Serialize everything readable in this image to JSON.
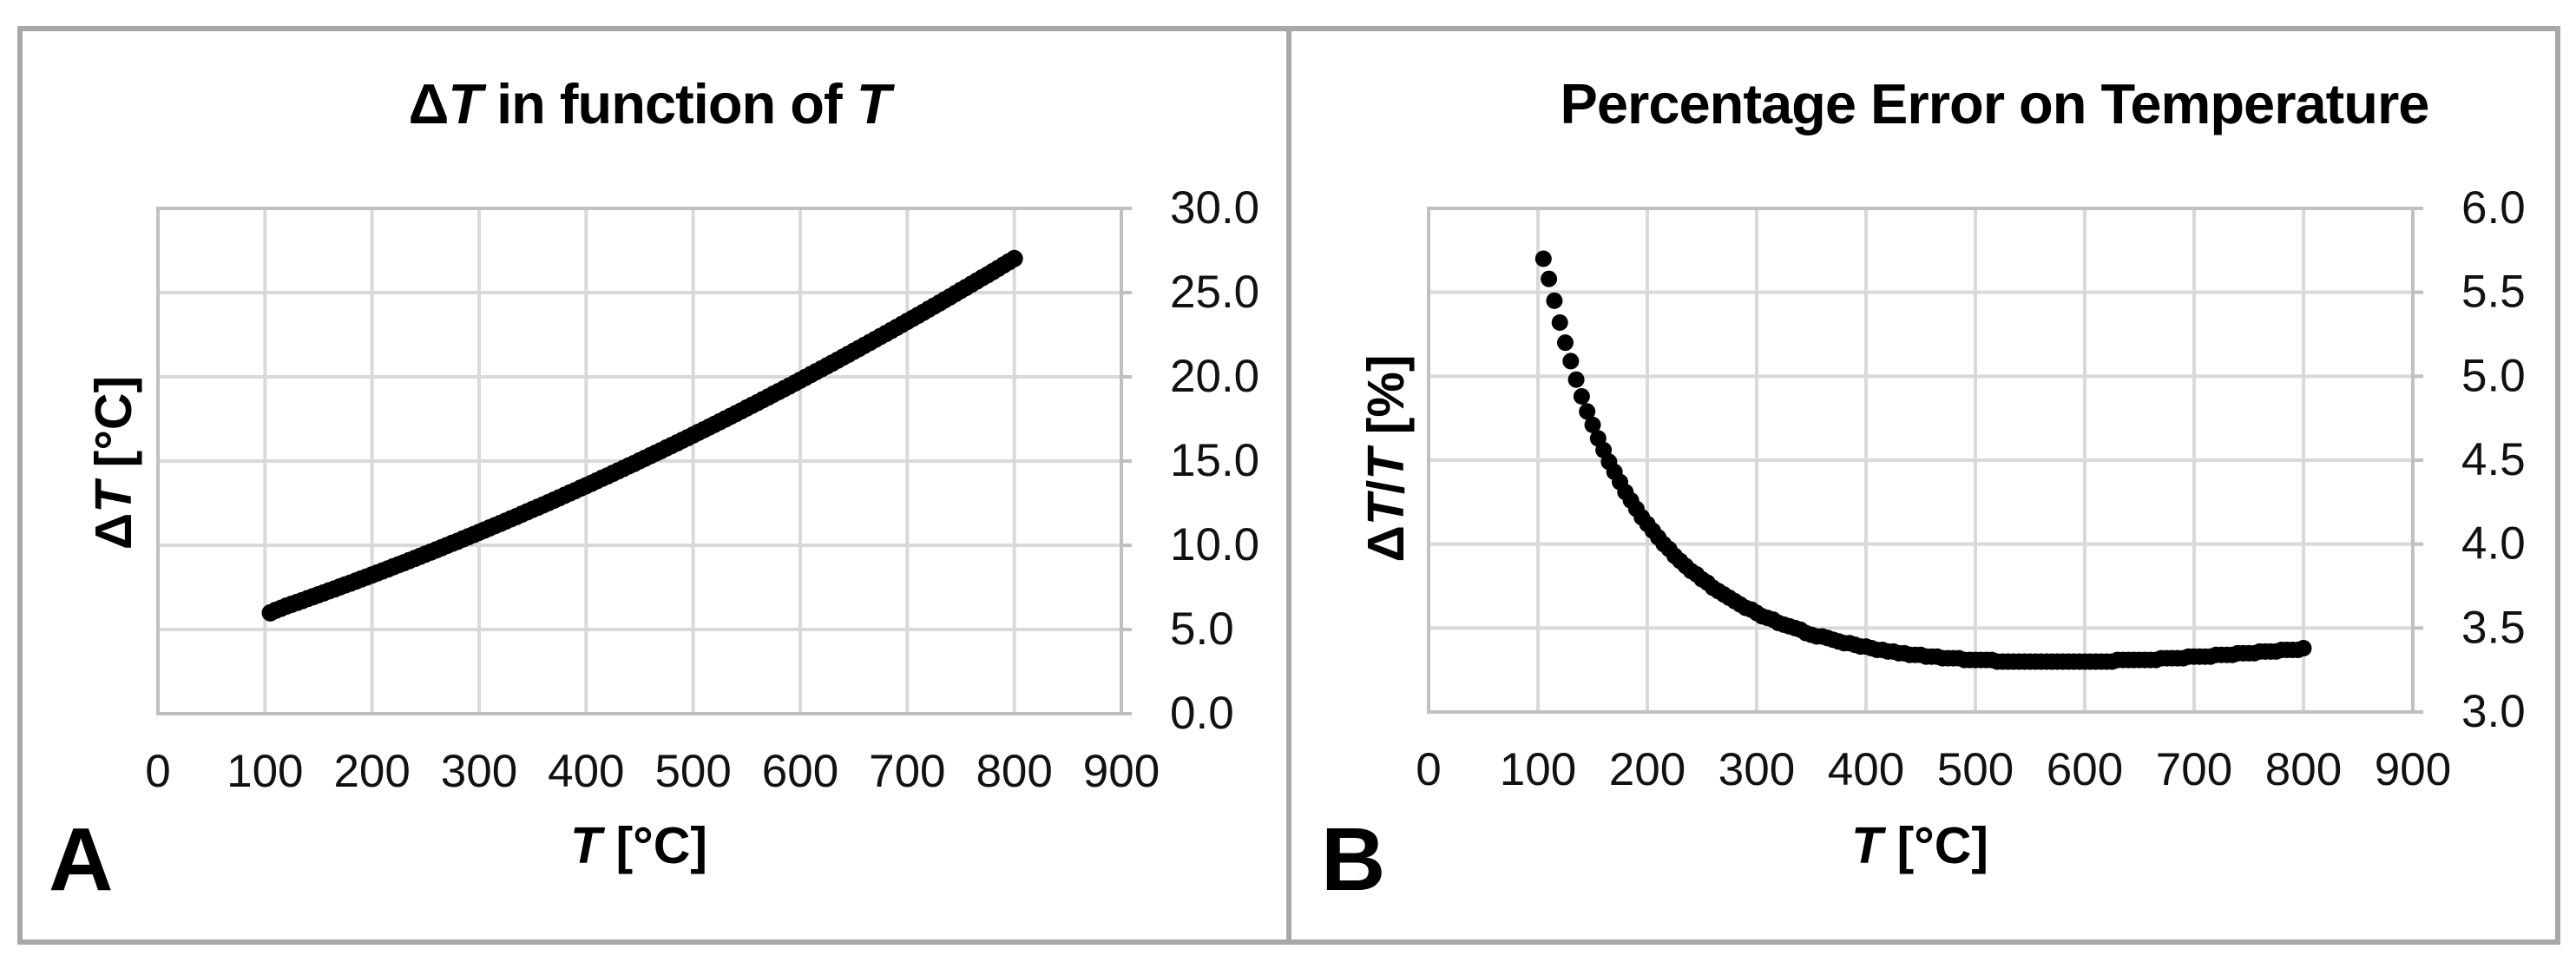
{
  "figure": {
    "frame_color": "#a8a8a8",
    "grid_color": "#d9d9d9",
    "axis_color": "#c0c0c0",
    "dot_color": "#000000",
    "text_color": "#111111"
  },
  "panels": [
    {
      "label": "A",
      "title_segments": [
        {
          "t": "Δ"
        },
        {
          "t": "T",
          "i": true
        },
        {
          "t": " in function of "
        },
        {
          "t": "T",
          "i": true
        }
      ],
      "x_title_segments": [
        {
          "t": "T",
          "i": true
        },
        {
          "t": " [°C]"
        }
      ],
      "y_title_segments": [
        {
          "t": "Δ"
        },
        {
          "t": "T",
          "i": true
        },
        {
          "t": " [°C]"
        }
      ],
      "x_tick_labels": [
        "0",
        "100",
        "200",
        "300",
        "400",
        "500",
        "600",
        "700",
        "800",
        "900"
      ],
      "y_tick_labels": [
        "0.0",
        "5.0",
        "10.0",
        "15.0",
        "20.0",
        "25.0",
        "30.0"
      ]
    },
    {
      "label": "B",
      "title_segments": [
        {
          "t": "Percentage Error on Temperature"
        }
      ],
      "x_title_segments": [
        {
          "t": "T",
          "i": true
        },
        {
          "t": " [°C]"
        }
      ],
      "y_title_segments": [
        {
          "t": "Δ"
        },
        {
          "t": "T",
          "i": true
        },
        {
          "t": "/"
        },
        {
          "t": "T",
          "i": true
        },
        {
          "t": " [%]"
        }
      ],
      "x_tick_labels": [
        "0",
        "100",
        "200",
        "300",
        "400",
        "500",
        "600",
        "700",
        "800",
        "900"
      ],
      "y_tick_labels": [
        "3.0",
        "3.5",
        "4.0",
        "4.5",
        "5.0",
        "5.5",
        "6.0"
      ]
    }
  ],
  "chart_data": [
    {
      "type": "scatter",
      "title": "ΔT in function of T",
      "xlabel": "T [°C]",
      "ylabel": "ΔT [°C]",
      "xlim": [
        0,
        900
      ],
      "ylim": [
        0,
        30
      ],
      "x_ticks": [
        0,
        100,
        200,
        300,
        400,
        500,
        600,
        700,
        800,
        900
      ],
      "y_ticks": [
        0,
        5,
        10,
        15,
        20,
        25,
        30
      ],
      "grid": true,
      "marker": "filled-circle",
      "color": "#000000",
      "x": [
        105,
        110,
        115,
        120,
        125,
        130,
        135,
        140,
        145,
        150,
        155,
        160,
        165,
        170,
        175,
        180,
        185,
        190,
        195,
        200,
        205,
        210,
        215,
        220,
        225,
        230,
        235,
        240,
        245,
        250,
        255,
        260,
        265,
        270,
        275,
        280,
        285,
        290,
        295,
        300,
        305,
        310,
        315,
        320,
        325,
        330,
        335,
        340,
        345,
        350,
        355,
        360,
        365,
        370,
        375,
        380,
        385,
        390,
        395,
        400,
        405,
        410,
        415,
        420,
        425,
        430,
        435,
        440,
        445,
        450,
        455,
        460,
        465,
        470,
        475,
        480,
        485,
        490,
        495,
        500,
        505,
        510,
        515,
        520,
        525,
        530,
        535,
        540,
        545,
        550,
        555,
        560,
        565,
        570,
        575,
        580,
        585,
        590,
        595,
        600,
        605,
        610,
        615,
        620,
        625,
        630,
        635,
        640,
        645,
        650,
        655,
        660,
        665,
        670,
        675,
        680,
        685,
        690,
        695,
        700,
        705,
        710,
        715,
        720,
        725,
        730,
        735,
        740,
        745,
        750,
        755,
        760,
        765,
        770,
        775,
        780,
        785,
        790,
        795,
        800
      ],
      "y": [
        5.99,
        6.14,
        6.26,
        6.39,
        6.5,
        6.61,
        6.72,
        6.84,
        6.95,
        7.07,
        7.18,
        7.3,
        7.41,
        7.53,
        7.65,
        7.76,
        7.88,
        8.0,
        8.12,
        8.24,
        8.36,
        8.48,
        8.6,
        8.73,
        8.85,
        8.97,
        9.1,
        9.22,
        9.35,
        9.48,
        9.6,
        9.73,
        9.86,
        9.99,
        10.12,
        10.24,
        10.38,
        10.51,
        10.64,
        10.77,
        10.9,
        11.04,
        11.17,
        11.3,
        11.44,
        11.58,
        11.71,
        11.85,
        11.99,
        12.13,
        12.26,
        12.4,
        12.54,
        12.68,
        12.82,
        12.97,
        13.11,
        13.25,
        13.4,
        13.54,
        13.68,
        13.83,
        13.98,
        14.12,
        14.27,
        14.42,
        14.57,
        14.72,
        14.86,
        15.02,
        15.17,
        15.32,
        15.47,
        15.62,
        15.78,
        15.93,
        16.08,
        16.24,
        16.39,
        16.55,
        16.71,
        16.86,
        17.02,
        17.18,
        17.34,
        17.5,
        17.66,
        17.82,
        17.98,
        18.15,
        18.31,
        18.47,
        18.64,
        18.8,
        18.97,
        19.13,
        19.3,
        19.46,
        19.63,
        19.8,
        19.97,
        20.14,
        20.31,
        20.48,
        20.65,
        20.82,
        20.99,
        21.17,
        21.34,
        21.52,
        21.69,
        21.87,
        22.04,
        22.22,
        22.4,
        22.57,
        22.75,
        22.93,
        23.11,
        23.29,
        23.47,
        23.65,
        23.83,
        24.02,
        24.2,
        24.38,
        24.57,
        24.75,
        24.94,
        25.13,
        25.31,
        25.5,
        25.69,
        25.88,
        26.06,
        26.25,
        26.44,
        26.64,
        26.83,
        27.02
      ]
    },
    {
      "type": "scatter",
      "title": "Percentage Error on Temperature",
      "xlabel": "T [°C]",
      "ylabel": "ΔT/T [%]",
      "xlim": [
        0,
        900
      ],
      "ylim": [
        3.0,
        6.0
      ],
      "x_ticks": [
        0,
        100,
        200,
        300,
        400,
        500,
        600,
        700,
        800,
        900
      ],
      "y_ticks": [
        3.0,
        3.5,
        4.0,
        4.5,
        5.0,
        5.5,
        6.0
      ],
      "grid": true,
      "marker": "filled-circle",
      "color": "#000000",
      "x": [
        105,
        110,
        115,
        120,
        125,
        130,
        135,
        140,
        145,
        150,
        155,
        160,
        165,
        170,
        175,
        180,
        185,
        190,
        195,
        200,
        205,
        210,
        215,
        220,
        225,
        230,
        235,
        240,
        245,
        250,
        255,
        260,
        265,
        270,
        275,
        280,
        285,
        290,
        295,
        300,
        305,
        310,
        315,
        320,
        325,
        330,
        335,
        340,
        345,
        350,
        355,
        360,
        365,
        370,
        375,
        380,
        385,
        390,
        395,
        400,
        405,
        410,
        415,
        420,
        425,
        430,
        435,
        440,
        445,
        450,
        455,
        460,
        465,
        470,
        475,
        480,
        485,
        490,
        495,
        500,
        505,
        510,
        515,
        520,
        525,
        530,
        535,
        540,
        545,
        550,
        555,
        560,
        565,
        570,
        575,
        580,
        585,
        590,
        595,
        600,
        605,
        610,
        615,
        620,
        625,
        630,
        635,
        640,
        645,
        650,
        655,
        660,
        665,
        670,
        675,
        680,
        685,
        690,
        695,
        700,
        705,
        710,
        715,
        720,
        725,
        730,
        735,
        740,
        745,
        750,
        755,
        760,
        765,
        770,
        775,
        780,
        785,
        790,
        795,
        800
      ],
      "y": [
        5.7,
        5.58,
        5.45,
        5.32,
        5.2,
        5.09,
        4.98,
        4.88,
        4.79,
        4.71,
        4.63,
        4.56,
        4.49,
        4.43,
        4.37,
        4.31,
        4.26,
        4.21,
        4.16,
        4.12,
        4.08,
        4.04,
        4.0,
        3.97,
        3.93,
        3.9,
        3.87,
        3.84,
        3.82,
        3.79,
        3.77,
        3.74,
        3.72,
        3.7,
        3.68,
        3.66,
        3.64,
        3.62,
        3.61,
        3.59,
        3.57,
        3.56,
        3.55,
        3.53,
        3.52,
        3.51,
        3.5,
        3.49,
        3.47,
        3.46,
        3.45,
        3.45,
        3.44,
        3.43,
        3.42,
        3.41,
        3.41,
        3.4,
        3.39,
        3.39,
        3.38,
        3.37,
        3.37,
        3.36,
        3.36,
        3.35,
        3.35,
        3.34,
        3.34,
        3.34,
        3.33,
        3.33,
        3.33,
        3.32,
        3.32,
        3.32,
        3.32,
        3.31,
        3.31,
        3.31,
        3.31,
        3.31,
        3.31,
        3.3,
        3.3,
        3.3,
        3.3,
        3.3,
        3.3,
        3.3,
        3.3,
        3.3,
        3.3,
        3.3,
        3.3,
        3.3,
        3.3,
        3.3,
        3.3,
        3.3,
        3.3,
        3.3,
        3.3,
        3.3,
        3.3,
        3.31,
        3.31,
        3.31,
        3.31,
        3.31,
        3.31,
        3.31,
        3.31,
        3.32,
        3.32,
        3.32,
        3.32,
        3.32,
        3.33,
        3.33,
        3.33,
        3.33,
        3.33,
        3.34,
        3.34,
        3.34,
        3.34,
        3.35,
        3.35,
        3.35,
        3.35,
        3.36,
        3.36,
        3.36,
        3.36,
        3.37,
        3.37,
        3.37,
        3.37,
        3.38
      ]
    }
  ]
}
